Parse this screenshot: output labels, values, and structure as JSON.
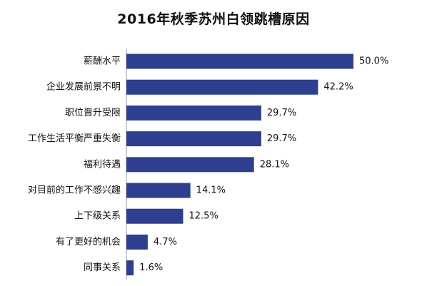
{
  "chart_data": {
    "type": "bar",
    "orientation": "horizontal",
    "title": "2016年秋季苏州白领跳槽原因",
    "categories": [
      "薪酬水平",
      "企业发展前景不明",
      "职位晋升受限",
      "工作生活平衡严重失衡",
      "福利待遇",
      "对目前的工作不感兴趣",
      "上下级关系",
      "有了更好的机会",
      "同事关系"
    ],
    "values": [
      50.0,
      42.2,
      29.7,
      29.7,
      28.1,
      14.1,
      12.5,
      4.7,
      1.6
    ],
    "value_labels": [
      "50.0%",
      "42.2%",
      "29.7%",
      "29.7%",
      "28.1%",
      "14.1%",
      "12.5%",
      "4.7%",
      "1.6%"
    ],
    "xlim": [
      0,
      50
    ],
    "grid": false,
    "legend": "none",
    "bar_color": "#2E3F8F"
  }
}
